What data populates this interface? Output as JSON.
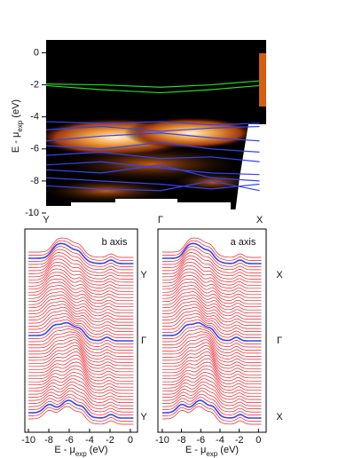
{
  "chart_data": [
    {
      "type": "band-map",
      "ylabel": [
        "E - μ",
        "exp",
        " (eV)"
      ],
      "ylim": [
        -10,
        0.8
      ],
      "yticks": [
        0,
        -2,
        -4,
        -6,
        -8,
        -10
      ],
      "xlim": [
        0,
        1
      ],
      "xticks": [
        {
          "value": 0,
          "label": "Y"
        },
        {
          "value": 0.52,
          "label": "Γ"
        },
        {
          "value": 0.97,
          "label": "X"
        }
      ],
      "x": [
        0,
        0.25,
        0.52,
        0.75,
        0.97
      ],
      "series": [
        {
          "color": "#22dd22",
          "values": [
            -1.95,
            -2.0,
            -2.15,
            -2.0,
            -1.75
          ]
        },
        {
          "color": "#22dd22",
          "values": [
            -2.05,
            -2.3,
            -2.5,
            -2.3,
            -2.05
          ]
        },
        {
          "color": "#3344ee",
          "values": [
            -4.3,
            -4.4,
            -4.3,
            -4.5,
            -4.4
          ]
        },
        {
          "color": "#3344ee",
          "values": [
            -4.8,
            -4.6,
            -4.9,
            -4.7,
            -4.6
          ]
        },
        {
          "color": "#3344ee",
          "values": [
            -5.5,
            -5.2,
            -5.0,
            -5.3,
            -5.5
          ]
        },
        {
          "color": "#3344ee",
          "values": [
            -5.8,
            -6.0,
            -5.6,
            -6.0,
            -6.2
          ]
        },
        {
          "color": "#3344ee",
          "values": [
            -6.4,
            -6.2,
            -6.6,
            -6.5,
            -6.8
          ]
        },
        {
          "color": "#3344ee",
          "values": [
            -7.0,
            -6.8,
            -7.2,
            -7.5,
            -7.6
          ]
        },
        {
          "color": "#3344ee",
          "values": [
            -7.3,
            -7.5,
            -7.0,
            -7.8,
            -8.0
          ]
        },
        {
          "color": "#3344ee",
          "values": [
            -7.8,
            -8.0,
            -8.2,
            -8.5,
            -8.2
          ]
        },
        {
          "color": "#3344ee",
          "values": [
            -8.3,
            -8.5,
            -8.6,
            -8.0,
            -8.6
          ]
        }
      ]
    },
    {
      "type": "edc",
      "label": "b axis",
      "side_labels": [
        "Y",
        "Γ",
        "Y"
      ],
      "xlabel": [
        "E - μ",
        "exp",
        " (eV)"
      ],
      "xlim": [
        -10.35,
        0.7
      ],
      "xticks": [
        -10,
        -8,
        -6,
        -4,
        -2,
        0
      ]
    },
    {
      "type": "edc",
      "label": "a axis",
      "side_labels": [
        "X",
        "Γ",
        "X"
      ],
      "xlabel": [
        "E - μ",
        "exp",
        " (eV)"
      ],
      "xlim": [
        -10.45,
        0.8
      ],
      "xticks": [
        -10,
        -8,
        -6,
        -4,
        -2,
        0
      ]
    }
  ]
}
